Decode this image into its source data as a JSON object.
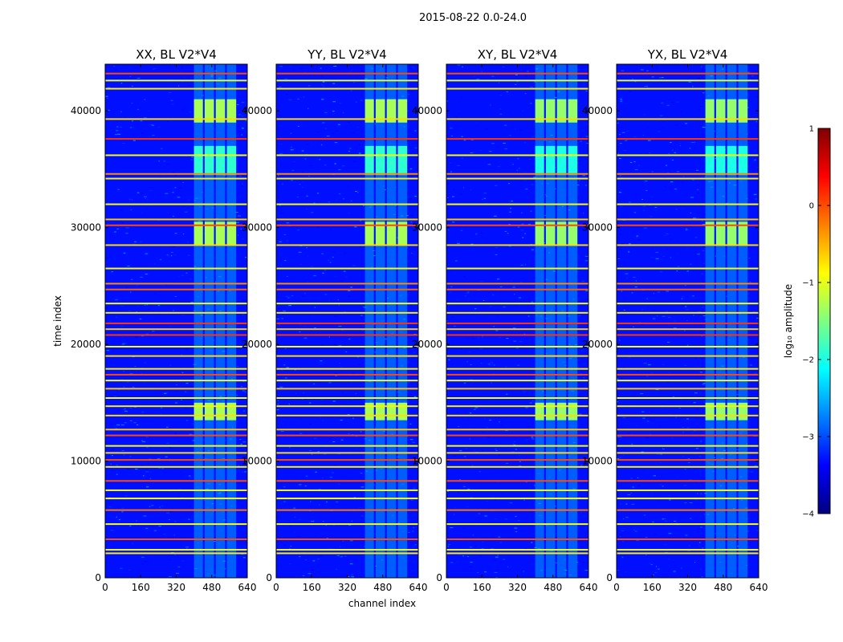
{
  "chart_data": {
    "type": "heatmap",
    "suptitle": "2015-08-22 0.0-24.0",
    "xlabel": "channel index",
    "ylabel": "time index",
    "xlim": [
      0,
      640
    ],
    "ylim": [
      0,
      44000
    ],
    "x_ticks": [
      "0",
      "160",
      "320",
      "480",
      "640"
    ],
    "y_ticks": [
      "0",
      "10000",
      "20000",
      "30000",
      "40000"
    ],
    "y_tick_values": [
      0,
      10000,
      20000,
      30000,
      40000
    ],
    "x_tick_values": [
      0,
      160,
      320,
      480,
      640
    ],
    "panels": [
      {
        "title": "XX, BL V2*V4",
        "strength": 1.0
      },
      {
        "title": "YY, BL V2*V4",
        "strength": 1.0
      },
      {
        "title": "XY, BL V2*V4",
        "strength": 0.9
      },
      {
        "title": "YX, BL V2*V4",
        "strength": 0.9
      }
    ],
    "colorbar": {
      "label": "log₁₀ amplitude",
      "range": [
        -4,
        1
      ],
      "ticks": [
        "1",
        "0",
        "−1",
        "−2",
        "−3",
        "−4"
      ],
      "tick_values": [
        1,
        0,
        -1,
        -2,
        -3,
        -4
      ],
      "colormap": "jet"
    },
    "rfi_channel_blocks": [
      [
        400,
        440
      ],
      [
        448,
        490
      ],
      [
        498,
        540
      ],
      [
        548,
        590
      ]
    ],
    "strong_time_ranges": [
      [
        39000,
        41000
      ],
      [
        28500,
        30500
      ],
      [
        13500,
        15000
      ],
      [
        34500,
        37000
      ]
    ],
    "flagged_time_rows": [
      {
        "t": 43200,
        "level": 0
      },
      {
        "t": 42600,
        "level": -1
      },
      {
        "t": 41900,
        "level": -0.8
      },
      {
        "t": 39300,
        "level": -0.7
      },
      {
        "t": 37600,
        "level": 0.1
      },
      {
        "t": 36200,
        "level": -0.9
      },
      {
        "t": 34600,
        "level": -0.3
      },
      {
        "t": 34200,
        "level": -0.8
      },
      {
        "t": 32000,
        "level": -0.9
      },
      {
        "t": 30700,
        "level": -0.6
      },
      {
        "t": 30200,
        "level": 0
      },
      {
        "t": 28500,
        "level": -0.7
      },
      {
        "t": 26500,
        "level": -0.9
      },
      {
        "t": 25200,
        "level": -0.3
      },
      {
        "t": 24700,
        "level": -0.1
      },
      {
        "t": 23500,
        "level": -0.9
      },
      {
        "t": 22700,
        "level": -0.8
      },
      {
        "t": 21800,
        "level": 0.1
      },
      {
        "t": 21300,
        "level": -0.6
      },
      {
        "t": 20800,
        "level": 0.1
      },
      {
        "t": 19800,
        "level": -0.9
      },
      {
        "t": 19000,
        "level": -0.7
      },
      {
        "t": 17900,
        "level": -0.8
      },
      {
        "t": 17400,
        "level": 0
      },
      {
        "t": 16900,
        "level": -0.9
      },
      {
        "t": 16200,
        "level": -0.6
      },
      {
        "t": 15400,
        "level": -0.9
      },
      {
        "t": 14700,
        "level": -0.8
      },
      {
        "t": 13900,
        "level": -0.7
      },
      {
        "t": 12700,
        "level": -0.6
      },
      {
        "t": 12200,
        "level": 0
      },
      {
        "t": 11300,
        "level": -0.9
      },
      {
        "t": 10700,
        "level": -0.7
      },
      {
        "t": 10100,
        "level": 0
      },
      {
        "t": 9500,
        "level": -0.8
      },
      {
        "t": 8300,
        "level": 0
      },
      {
        "t": 7500,
        "level": -0.9
      },
      {
        "t": 6800,
        "level": -0.9
      },
      {
        "t": 5800,
        "level": -0.2
      },
      {
        "t": 4600,
        "level": -0.9
      },
      {
        "t": 3300,
        "level": 0
      },
      {
        "t": 2400,
        "level": -0.9
      },
      {
        "t": 2100,
        "level": -0.8
      }
    ],
    "background_level": -3.3
  }
}
